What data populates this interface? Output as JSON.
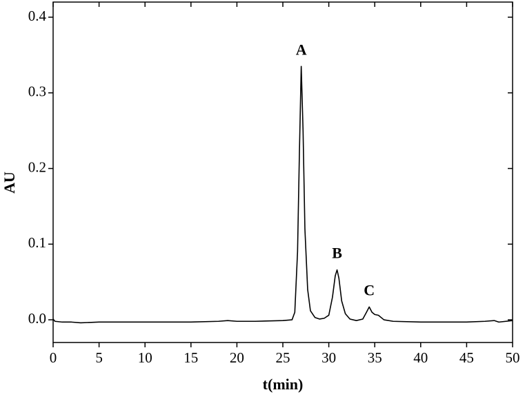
{
  "chart_data": {
    "type": "line",
    "x_label": "t(min)",
    "y_label": "AU",
    "xlim": [
      0,
      50
    ],
    "xticks": [
      0,
      5,
      10,
      15,
      20,
      25,
      30,
      35,
      40,
      45,
      50
    ],
    "ylim": [
      -0.03,
      0.42
    ],
    "yticks": [
      {
        "value": 0,
        "label": "0.0"
      },
      0.1,
      0.2,
      0.3,
      0.4
    ],
    "color": "#000000",
    "x": [
      0,
      0.2,
      1,
      2,
      3,
      5,
      10,
      15,
      18,
      19,
      20,
      22,
      25,
      26,
      26.3,
      26.6,
      26.8,
      27.0,
      27.2,
      27.4,
      27.7,
      28.0,
      28.5,
      29,
      29.5,
      30,
      30.4,
      30.7,
      30.9,
      31.1,
      31.4,
      31.8,
      32.3,
      33,
      33.7,
      34.1,
      34.4,
      34.7,
      35.0,
      35.4,
      36,
      37,
      40,
      45,
      47,
      48,
      48.5,
      50
    ],
    "values": [
      0.001,
      -0.002,
      -0.003,
      -0.003,
      -0.004,
      -0.003,
      -0.003,
      -0.003,
      -0.002,
      -0.001,
      -0.002,
      -0.002,
      -0.001,
      0.0,
      0.01,
      0.09,
      0.22,
      0.335,
      0.25,
      0.12,
      0.04,
      0.012,
      0.003,
      0.001,
      0.002,
      0.006,
      0.03,
      0.058,
      0.066,
      0.055,
      0.025,
      0.008,
      0.001,
      -0.001,
      0.001,
      0.01,
      0.017,
      0.01,
      0.007,
      0.006,
      0.0,
      -0.002,
      -0.003,
      -0.003,
      -0.002,
      -0.001,
      -0.003,
      -0.001
    ],
    "annotations": [
      {
        "text": "A",
        "x": 27.0,
        "y": 0.335
      },
      {
        "text": "B",
        "x": 30.9,
        "y": 0.066
      },
      {
        "text": "C",
        "x": 34.4,
        "y": 0.017
      }
    ]
  }
}
